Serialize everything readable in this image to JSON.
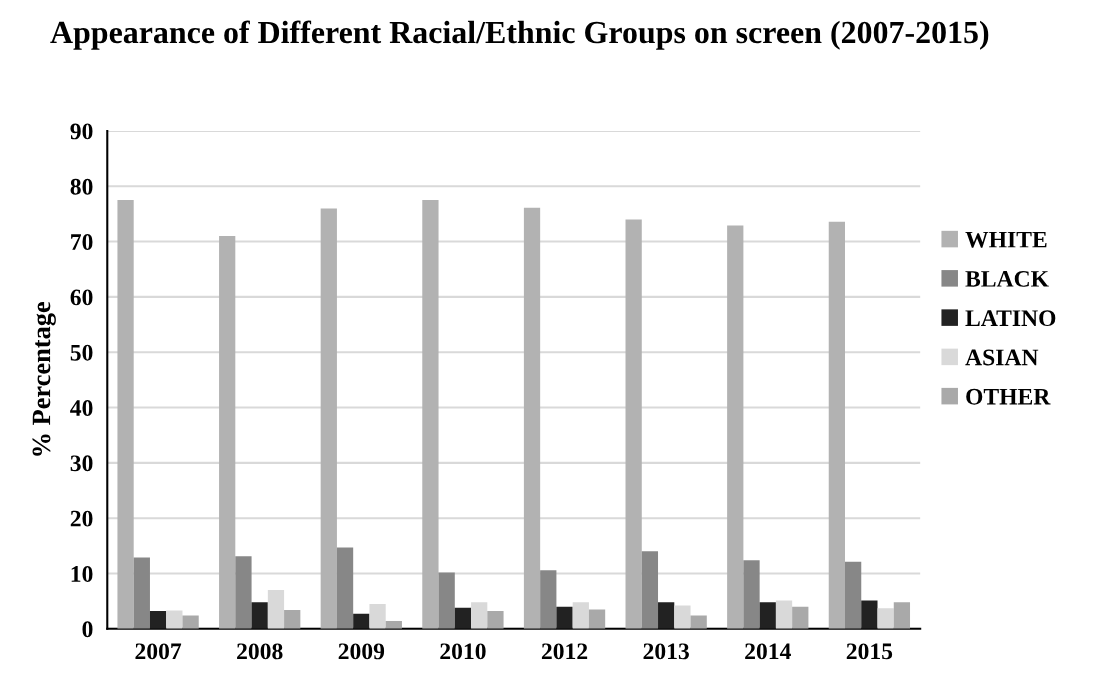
{
  "chart_data": {
    "type": "bar",
    "title": "Appearance of Different Racial/Ethnic Groups on screen (2007-2015)",
    "ylabel": "% Percentage",
    "categories": [
      "2007",
      "2008",
      "2009",
      "2010",
      "2012",
      "2013",
      "2014",
      "2015"
    ],
    "series": [
      {
        "name": "WHITE",
        "color": "#b2b2b2",
        "values": [
          77.5,
          71.0,
          76.0,
          77.5,
          76.1,
          74.0,
          72.9,
          73.6
        ]
      },
      {
        "name": "BLACK",
        "color": "#878787",
        "values": [
          12.9,
          13.1,
          14.7,
          10.2,
          10.6,
          14.0,
          12.4,
          12.1
        ]
      },
      {
        "name": "LATINO",
        "color": "#222222",
        "values": [
          3.2,
          4.8,
          2.7,
          3.8,
          4.0,
          4.8,
          4.8,
          5.1
        ]
      },
      {
        "name": "ASIAN",
        "color": "#d9d9d9",
        "values": [
          3.3,
          7.0,
          4.5,
          4.8,
          4.8,
          4.2,
          5.1,
          3.7
        ]
      },
      {
        "name": "OTHER",
        "color": "#a9a9a9",
        "values": [
          2.4,
          3.4,
          1.4,
          3.2,
          3.5,
          2.4,
          4.0,
          4.8
        ]
      }
    ],
    "ylim": [
      0,
      90
    ],
    "yticks": [
      0,
      10,
      20,
      30,
      40,
      50,
      60,
      70,
      80,
      90
    ],
    "grid": "y",
    "legend": "right"
  }
}
